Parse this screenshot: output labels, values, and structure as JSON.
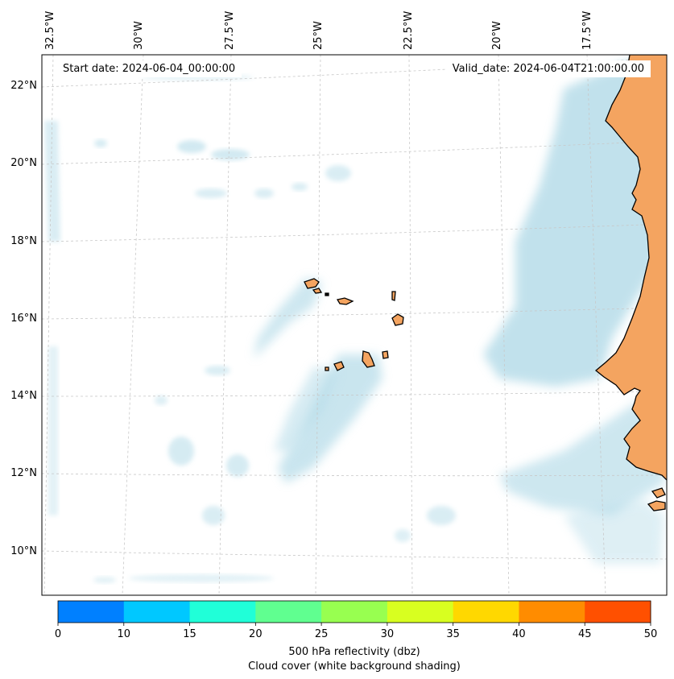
{
  "header": {
    "start_date": "Start date: 2024-06-04_00:00:00",
    "valid_date": "Valid_date: 2024-06-04T21:00:00.00"
  },
  "map": {
    "lon_labels": [
      "32.5°W",
      "30°W",
      "27.5°W",
      "25°W",
      "22.5°W",
      "20°W",
      "17.5°W"
    ],
    "lat_labels": [
      "22°N",
      "20°N",
      "18°N",
      "16°N",
      "14°N",
      "12°N",
      "10°N"
    ],
    "land_color": "#f4a460",
    "cloud_color": "#add8e6",
    "grid": true
  },
  "colorbar": {
    "ticks": [
      "0",
      "10",
      "15",
      "20",
      "25",
      "30",
      "35",
      "40",
      "45",
      "50"
    ],
    "colors": [
      "#0080ff",
      "#00c8ff",
      "#20ffd8",
      "#60ff90",
      "#98ff50",
      "#d8ff20",
      "#ffd800",
      "#ff8c00",
      "#ff5000"
    ],
    "label_line1": "500 hPa reflectivity (dbz)",
    "label_line2": "Cloud cover (white background shading)"
  }
}
